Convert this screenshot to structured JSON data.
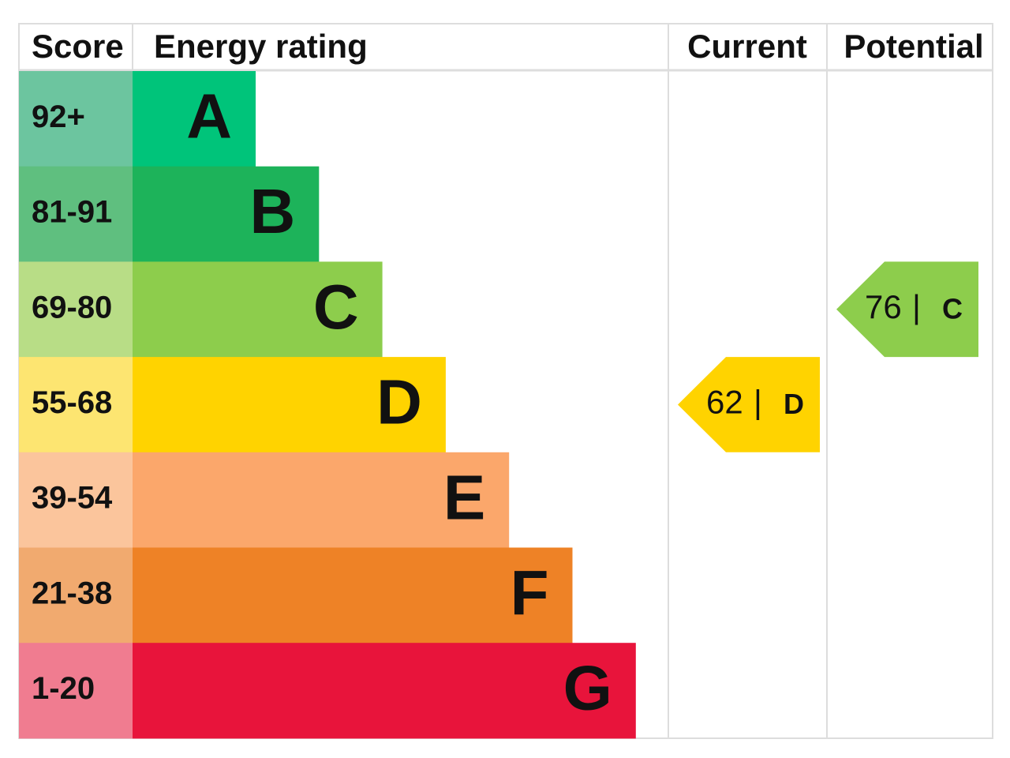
{
  "header": {
    "score": "Score",
    "rating": "Energy rating",
    "current": "Current",
    "potential": "Potential"
  },
  "bands": [
    {
      "score": "92+",
      "letter": "A",
      "score_color": "#6cc59f",
      "color": "#00c47a"
    },
    {
      "score": "81-91",
      "letter": "B",
      "score_color": "#5fbf7f",
      "color": "#1db35a"
    },
    {
      "score": "69-80",
      "letter": "C",
      "score_color": "#b8dd86",
      "color": "#8dcd4c"
    },
    {
      "score": "55-68",
      "letter": "D",
      "score_color": "#fde571",
      "color": "#ffd300"
    },
    {
      "score": "39-54",
      "letter": "E",
      "score_color": "#fbc59c",
      "color": "#fba76b"
    },
    {
      "score": "21-38",
      "letter": "F",
      "score_color": "#f1aa6f",
      "color": "#ee8226"
    },
    {
      "score": "1-20",
      "letter": "G",
      "score_color": "#f07c90",
      "color": "#e8143b"
    }
  ],
  "current": {
    "value": 62,
    "separator": "|",
    "letter": "D"
  },
  "potential": {
    "value": 76,
    "separator": "|",
    "letter": "C"
  }
}
